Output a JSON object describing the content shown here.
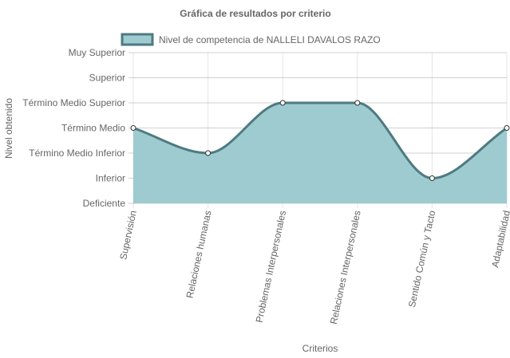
{
  "chart_data": {
    "type": "area",
    "title": "Gráfica de resultados por criterio",
    "xlabel": "Criterios",
    "ylabel": "Nivel obtenido",
    "y_levels": [
      "Deficiente",
      "Inferior",
      "Término Medio Inferior",
      "Término Medio",
      "Término Medio Superior",
      "Superior",
      "Muy Superior"
    ],
    "categories": [
      "Supervisión",
      "Relaciones humanas",
      "Problemas Interpersonales",
      "Relaciones Interpersonales",
      "Sentido Común y Tacto",
      "Adaptabilidad"
    ],
    "series": [
      {
        "name": "Nivel de competencia de NALLELI DAVALOS RAZO",
        "values": [
          3,
          2,
          4,
          4,
          1,
          3
        ],
        "fill_color": "#9ecbcf",
        "line_color": "#4e7a80"
      }
    ],
    "ylim": [
      0,
      6
    ],
    "grid": true,
    "legend_position": "top-center"
  }
}
